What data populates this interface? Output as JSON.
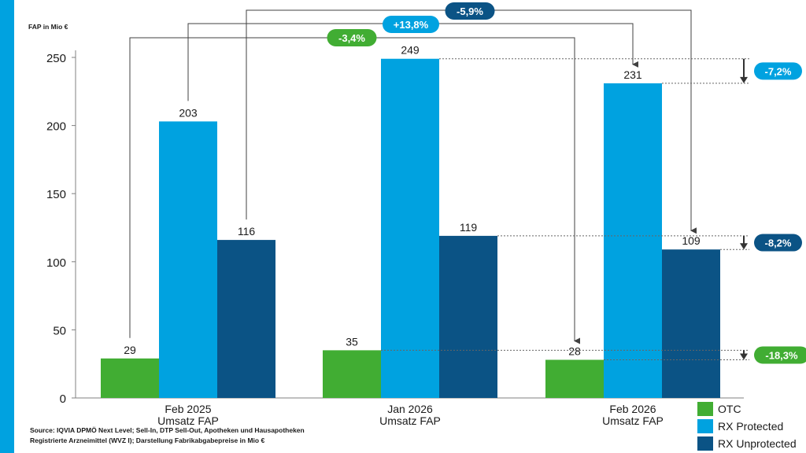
{
  "colors": {
    "left_bar": "#00a2e0",
    "otc": "#41ad33",
    "rx_protected": "#00a2e0",
    "rx_unprotected": "#0b5385",
    "axis": "#808080",
    "text": "#1a1a1a",
    "connector": "#404040"
  },
  "chart_data": {
    "type": "bar",
    "ylabel": "FAP in Mio €",
    "ylim": [
      0,
      250
    ],
    "yticks": [
      "0",
      "50",
      "100",
      "150",
      "200",
      "250"
    ],
    "ytick_values": [
      0,
      50,
      100,
      150,
      200,
      250
    ],
    "categories": [
      {
        "line1": "Feb 2025",
        "line2": "Umsatz FAP"
      },
      {
        "line1": "Jan 2026",
        "line2": "Umsatz FAP"
      },
      {
        "line1": "Feb 2026",
        "line2": "Umsatz FAP"
      }
    ],
    "series": [
      {
        "name": "OTC",
        "color_key": "otc",
        "values": [
          29,
          35,
          28
        ],
        "labels": [
          "29",
          "35",
          "28"
        ]
      },
      {
        "name": "RX Protected",
        "color_key": "rx_protected",
        "values": [
          203,
          249,
          231
        ],
        "labels": [
          "203",
          "249",
          "231"
        ]
      },
      {
        "name": "RX Unprotected",
        "color_key": "rx_unprotected",
        "values": [
          116,
          119,
          109
        ],
        "labels": [
          "116",
          "119",
          "109"
        ]
      }
    ],
    "yoy_changes": [
      {
        "label": "-3,4%",
        "series": 0,
        "color_key": "otc"
      },
      {
        "label": "+13,8%",
        "series": 1,
        "color_key": "rx_protected"
      },
      {
        "label": "-5,9%",
        "series": 2,
        "color_key": "rx_unprotected"
      }
    ],
    "mom_changes": [
      {
        "label": "-7,2%",
        "series": 1,
        "color_key": "rx_protected"
      },
      {
        "label": "-8,2%",
        "series": 2,
        "color_key": "rx_unprotected"
      },
      {
        "label": "-18,3%",
        "series": 0,
        "color_key": "otc"
      }
    ]
  },
  "source": {
    "line1": "Source: IQVIA DPMÖ Next Level; Sell-In, DTP Sell-Out, Apotheken und Hausapotheken",
    "line2": "Registrierte Arzneimittel (WVZ I); Darstellung Fabrikabgabepreise in Mio €"
  }
}
